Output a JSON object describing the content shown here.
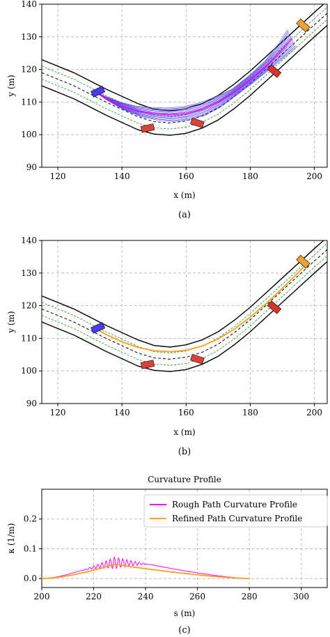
{
  "chart_data": [
    {
      "type": "line",
      "caption": "(a)",
      "xlabel": "x (m)",
      "ylabel": "y (m)",
      "xlim": [
        115,
        204
      ],
      "ylim": [
        90,
        140
      ],
      "xticks": [
        120,
        140,
        160,
        180,
        200
      ],
      "yticks": [
        90,
        100,
        110,
        120,
        130,
        140
      ],
      "grid": true,
      "road": {
        "outer_left": [
          [
            115,
            123
          ],
          [
            125,
            119
          ],
          [
            135,
            114
          ],
          [
            145,
            109.5
          ],
          [
            150,
            107.8
          ],
          [
            155,
            107.3
          ],
          [
            160,
            108
          ],
          [
            165,
            109.5
          ],
          [
            170,
            112
          ],
          [
            175,
            115.5
          ],
          [
            180,
            119.5
          ],
          [
            185,
            124
          ],
          [
            190,
            128.5
          ],
          [
            195,
            133
          ],
          [
            200,
            137.5
          ],
          [
            204,
            141
          ]
        ],
        "outer_right": [
          [
            115,
            115
          ],
          [
            125,
            111
          ],
          [
            135,
            106
          ],
          [
            145,
            101.5
          ],
          [
            150,
            100.2
          ],
          [
            155,
            99.8
          ],
          [
            160,
            100.4
          ],
          [
            165,
            102
          ],
          [
            170,
            104.5
          ],
          [
            175,
            108
          ],
          [
            180,
            112
          ],
          [
            185,
            116.5
          ],
          [
            190,
            121
          ],
          [
            195,
            125.5
          ],
          [
            200,
            130
          ],
          [
            204,
            133.5
          ]
        ],
        "center": [
          [
            115,
            119
          ],
          [
            125,
            115
          ],
          [
            135,
            110
          ],
          [
            145,
            105.5
          ],
          [
            150,
            104
          ],
          [
            155,
            103.6
          ],
          [
            160,
            104.2
          ],
          [
            165,
            105.7
          ],
          [
            170,
            108.2
          ],
          [
            175,
            111.7
          ],
          [
            180,
            115.7
          ],
          [
            185,
            120.2
          ],
          [
            190,
            124.7
          ],
          [
            195,
            129.2
          ],
          [
            200,
            133.7
          ],
          [
            204,
            137.2
          ]
        ],
        "lane_left": [
          [
            115,
            121
          ],
          [
            125,
            117
          ],
          [
            135,
            112
          ],
          [
            145,
            107.5
          ],
          [
            150,
            105.9
          ],
          [
            155,
            105.5
          ],
          [
            160,
            106.1
          ],
          [
            165,
            107.6
          ],
          [
            170,
            110.1
          ],
          [
            175,
            113.6
          ],
          [
            180,
            117.6
          ],
          [
            185,
            122.1
          ],
          [
            190,
            126.6
          ],
          [
            195,
            131.1
          ],
          [
            200,
            135.6
          ],
          [
            204,
            139.1
          ]
        ],
        "lane_right": [
          [
            115,
            117
          ],
          [
            125,
            113
          ],
          [
            135,
            108
          ],
          [
            145,
            103.5
          ],
          [
            150,
            102.1
          ],
          [
            155,
            101.7
          ],
          [
            160,
            102.3
          ],
          [
            165,
            103.8
          ],
          [
            170,
            106.3
          ],
          [
            175,
            109.8
          ],
          [
            180,
            113.8
          ],
          [
            185,
            118.3
          ],
          [
            190,
            122.8
          ],
          [
            195,
            127.3
          ],
          [
            200,
            131.8
          ],
          [
            204,
            135.3
          ]
        ]
      },
      "rough_path": [
        [
          131,
          113.5
        ],
        [
          135,
          111.2
        ],
        [
          140,
          108.8
        ],
        [
          145,
          107.2
        ],
        [
          150,
          106.4
        ],
        [
          155,
          106.1
        ],
        [
          160,
          106.5
        ],
        [
          165,
          107.8
        ],
        [
          170,
          110
        ],
        [
          175,
          113
        ],
        [
          180,
          116.8
        ],
        [
          185,
          121
        ],
        [
          190,
          126
        ],
        [
          193,
          129.5
        ]
      ],
      "vehicles": [
        {
          "name": "ego",
          "x": 132.5,
          "y": 113.2,
          "angle_deg": -25,
          "color": "#4a3cf0"
        },
        {
          "name": "obstacle-1",
          "x": 148,
          "y": 102,
          "angle_deg": -12,
          "color": "#e0403a"
        },
        {
          "name": "obstacle-2",
          "x": 163.5,
          "y": 103.6,
          "angle_deg": 18,
          "color": "#e0403a"
        },
        {
          "name": "obstacle-3",
          "x": 187.5,
          "y": 119.5,
          "angle_deg": 40,
          "color": "#d8332c"
        },
        {
          "name": "goal",
          "x": 196.5,
          "y": 133.5,
          "angle_deg": 42,
          "color": "#f0a030"
        }
      ]
    },
    {
      "type": "line",
      "caption": "(b)",
      "xlabel": "x (m)",
      "ylabel": "y (m)",
      "xlim": [
        115,
        204
      ],
      "ylim": [
        90,
        140
      ],
      "xticks": [
        120,
        140,
        160,
        180,
        200
      ],
      "yticks": [
        90,
        100,
        110,
        120,
        130,
        140
      ],
      "grid": true,
      "refined_path": [
        [
          131,
          113.3
        ],
        [
          135,
          111.2
        ],
        [
          140,
          108.9
        ],
        [
          145,
          107.2
        ],
        [
          150,
          106.2
        ],
        [
          155,
          105.9
        ],
        [
          160,
          106.3
        ],
        [
          165,
          107.6
        ],
        [
          170,
          109.8
        ],
        [
          175,
          112.8
        ],
        [
          180,
          116.5
        ],
        [
          185,
          120.7
        ],
        [
          190,
          125.3
        ],
        [
          195,
          130.1
        ],
        [
          198,
          133.2
        ]
      ]
    },
    {
      "type": "line",
      "title": "Curvature Profile",
      "caption": "(c)",
      "xlabel": "s (m)",
      "ylabel": "κ (1/m)",
      "xlim": [
        200,
        310
      ],
      "ylim": [
        -0.03,
        0.3
      ],
      "xticks": [
        200,
        220,
        240,
        260,
        280,
        300
      ],
      "yticks": [
        0.0,
        0.1,
        0.2
      ],
      "grid": true,
      "legend_position": "top-right",
      "series": [
        {
          "name": "Rough Path Curvature Profile",
          "color": "#ff00ff",
          "s_range": [
            200,
            280
          ],
          "peak_s": 228,
          "peak_kappa": 0.073,
          "oscillation": true
        },
        {
          "name": "Refined Path Curvature Profile",
          "color": "#ff9f1a",
          "s_range": [
            200,
            280
          ],
          "peak_s": 228,
          "peak_kappa": 0.048,
          "oscillation": false
        }
      ]
    }
  ]
}
